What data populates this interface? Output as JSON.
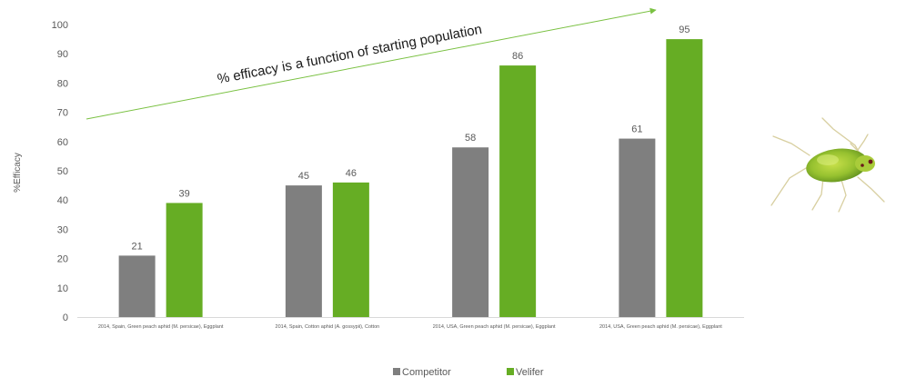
{
  "chart_data": {
    "type": "bar",
    "categories": [
      "2014, Spain, Green peach aphid (M. persicae), Eggplant",
      "2014, Spain, Cotton aphid (A. gossypii), Cotton",
      "2014, USA, Green peach aphid (M. persicae), Eggplant",
      "2014, USA, Green peach aphid (M. persicae), Eggplant"
    ],
    "series": [
      {
        "name": "Competitor",
        "values": [
          21,
          45,
          58,
          61
        ],
        "color": "#7f7f7f"
      },
      {
        "name": "Velifer",
        "values": [
          39,
          46,
          86,
          95
        ],
        "color": "#66ad24"
      }
    ],
    "title": "",
    "xlabel": "",
    "ylabel": "%Efficacy",
    "ylim": [
      0,
      100
    ],
    "yticks": [
      0,
      10,
      20,
      30,
      40,
      50,
      60,
      70,
      80,
      90,
      100
    ],
    "grid": false,
    "legend_position": "bottom",
    "annotation": "% efficacy is a function of starting population",
    "annotation_color": "#7ac142"
  }
}
